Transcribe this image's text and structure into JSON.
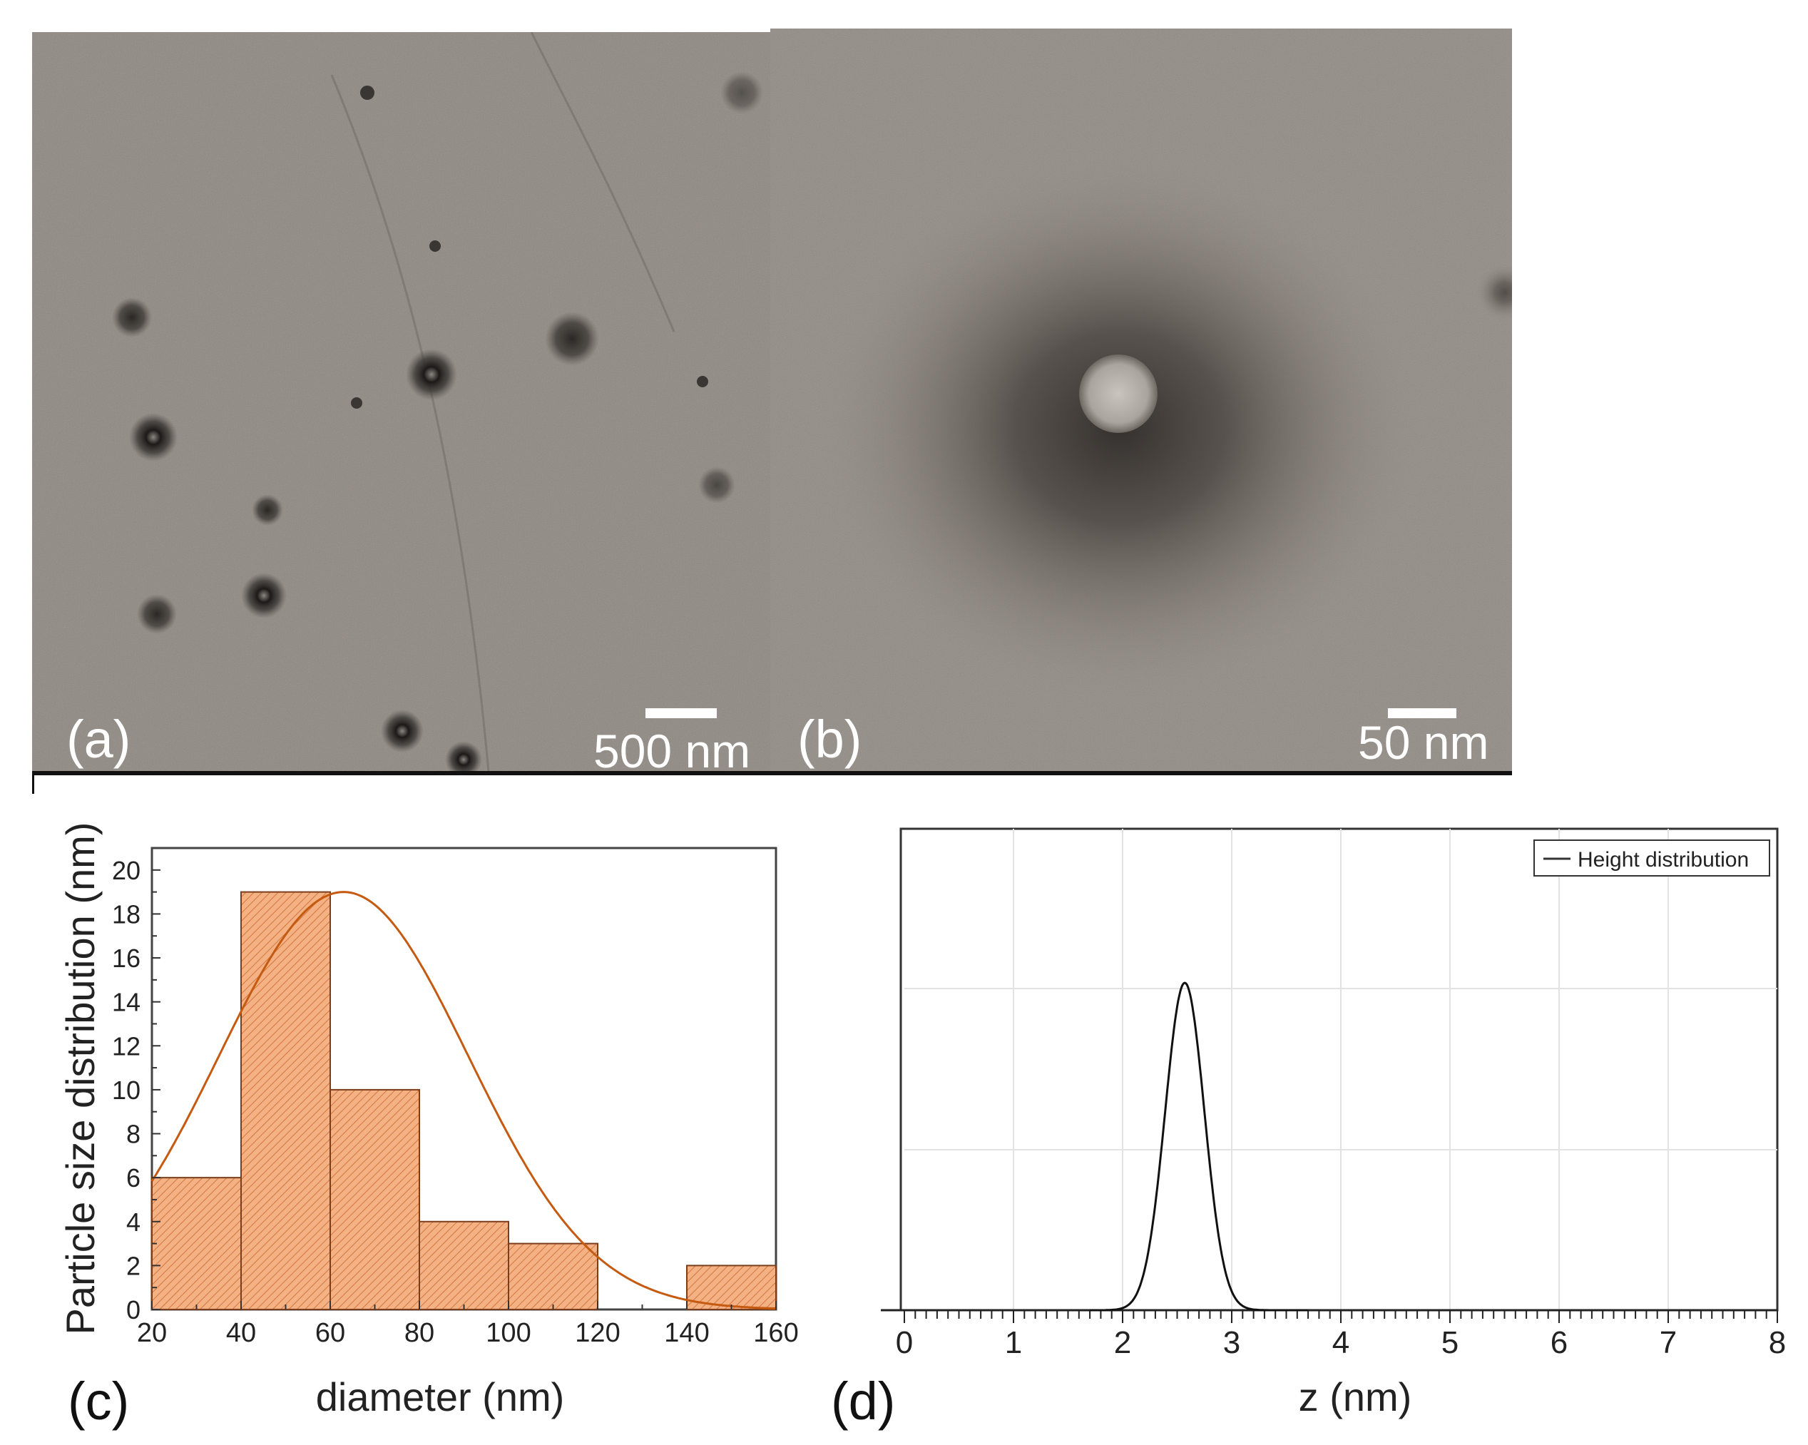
{
  "panels": {
    "a": {
      "label": "(a)",
      "scale_text": "500 nm"
    },
    "b": {
      "label": "(b)",
      "scale_text": "50 nm"
    },
    "c": {
      "label": "(c)"
    },
    "d": {
      "label": "(d)"
    }
  },
  "colors": {
    "histogram_fill": "#f4b184",
    "histogram_edge": "#7a3e1d",
    "fit_curve": "#c55a11",
    "height_line": "#111111",
    "tem_background": "#8f8882"
  },
  "chart_data": [
    {
      "panel": "c",
      "type": "bar",
      "title": "",
      "xlabel": "diameter (nm)",
      "ylabel": "Particle size distribution (nm)",
      "xlim": [
        20,
        160
      ],
      "ylim": [
        0,
        21
      ],
      "x_ticks": [
        20,
        40,
        60,
        80,
        100,
        120,
        140,
        160
      ],
      "y_ticks": [
        0,
        2,
        4,
        6,
        8,
        10,
        12,
        14,
        16,
        18,
        20
      ],
      "bins": [
        {
          "from": 20,
          "to": 40,
          "value": 6
        },
        {
          "from": 40,
          "to": 60,
          "value": 19
        },
        {
          "from": 60,
          "to": 80,
          "value": 10
        },
        {
          "from": 80,
          "to": 100,
          "value": 4
        },
        {
          "from": 100,
          "to": 120,
          "value": 3
        },
        {
          "from": 120,
          "to": 140,
          "value": 0
        },
        {
          "from": 140,
          "to": 160,
          "value": 2
        }
      ],
      "fit": {
        "kind": "gaussian",
        "mean": 63,
        "sigma": 28,
        "amplitude": 19
      },
      "grid": false,
      "legend": "none"
    },
    {
      "panel": "d",
      "type": "line",
      "title": "",
      "xlabel": "z (nm)",
      "ylabel": "",
      "xlim": [
        0,
        8
      ],
      "x_ticks": [
        0,
        1,
        2,
        3,
        4,
        5,
        6,
        7,
        8
      ],
      "series": [
        {
          "name": "Height distribution",
          "kind": "gaussian",
          "mean": 2.57,
          "sigma": 0.18,
          "peak": 1.0
        }
      ],
      "grid": true,
      "legend": "top-right"
    }
  ]
}
